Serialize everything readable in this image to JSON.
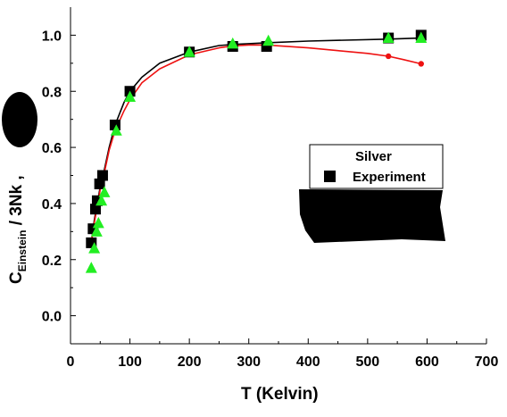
{
  "chart_data": {
    "type": "scatter",
    "title": "",
    "xlabel": "T  (Kelvin)",
    "ylabel_main": "C",
    "ylabel_sub": "Einstein",
    "ylabel_rest": " / 3Nk  ,",
    "xlim": [
      0,
      700
    ],
    "ylim": [
      -0.1,
      1.1
    ],
    "x_ticks": [
      0,
      100,
      200,
      300,
      400,
      500,
      600,
      700
    ],
    "y_ticks": [
      0.0,
      0.2,
      0.4,
      0.6,
      0.8,
      1.0
    ],
    "x_tick_labels": [
      "0",
      "100",
      "200",
      "300",
      "400",
      "500",
      "600",
      "700"
    ],
    "y_tick_labels": [
      "0.0",
      "0.2",
      "0.4",
      "0.6",
      "0.8",
      "1.0"
    ],
    "grid": false,
    "legend": {
      "placement": "right",
      "title": "Silver",
      "entries": [
        "Experiment"
      ]
    },
    "series": [
      {
        "name": "Experiment",
        "marker": "square",
        "color": "#000000",
        "x": [
          35,
          38,
          42,
          45,
          49,
          54,
          75,
          100,
          200,
          273,
          330,
          535,
          590
        ],
        "y": [
          0.26,
          0.31,
          0.38,
          0.41,
          0.47,
          0.5,
          0.68,
          0.8,
          0.94,
          0.96,
          0.96,
          0.99,
          1.0
        ]
      },
      {
        "marker": "triangle",
        "color": "#22ee22",
        "x": [
          35,
          40,
          44,
          47,
          52,
          57,
          77,
          100,
          200,
          273,
          333,
          535,
          590
        ],
        "y": [
          0.17,
          0.24,
          0.3,
          0.33,
          0.41,
          0.44,
          0.66,
          0.78,
          0.94,
          0.97,
          0.98,
          0.99,
          0.99
        ]
      },
      {
        "line": true,
        "color": "#000000",
        "x": [
          35,
          40,
          45,
          50,
          57,
          65,
          75,
          90,
          100,
          120,
          150,
          200,
          250,
          273,
          330,
          400,
          535,
          590
        ],
        "y": [
          0.26,
          0.34,
          0.4,
          0.46,
          0.52,
          0.6,
          0.68,
          0.76,
          0.8,
          0.85,
          0.9,
          0.94,
          0.963,
          0.967,
          0.973,
          0.979,
          0.986,
          0.99
        ]
      },
      {
        "line": true,
        "markers_at": [
          535,
          590
        ],
        "color": "#ee1111",
        "x": [
          35,
          40,
          45,
          50,
          57,
          65,
          75,
          90,
          100,
          120,
          150,
          200,
          250,
          273,
          300,
          330,
          400,
          450,
          500,
          535,
          560,
          590
        ],
        "y": [
          0.26,
          0.33,
          0.39,
          0.45,
          0.51,
          0.59,
          0.66,
          0.73,
          0.77,
          0.83,
          0.88,
          0.93,
          0.955,
          0.962,
          0.965,
          0.965,
          0.955,
          0.945,
          0.935,
          0.925,
          0.913,
          0.898
        ]
      }
    ]
  },
  "colors": {
    "redacted_fill": "#000000"
  }
}
